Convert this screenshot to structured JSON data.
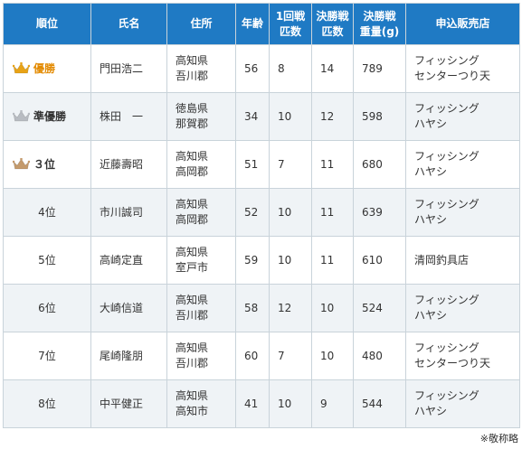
{
  "table": {
    "headers": [
      "順位",
      "氏名",
      "住所",
      "年齢",
      "1回戦\n匹数",
      "決勝戦\n匹数",
      "決勝戦\n重量(g)",
      "申込販売店"
    ],
    "rows": [
      {
        "rank": "優勝",
        "medal": "gold-crown-icon",
        "name": "門田浩二",
        "address": [
          "高知県",
          "吾川郡"
        ],
        "age": "56",
        "round1": "8",
        "final_count": "14",
        "final_weight": "789",
        "shop": [
          "フィッシング",
          "センターつり天"
        ]
      },
      {
        "rank": "準優勝",
        "medal": "silver-crown-icon",
        "name": "株田　一",
        "address": [
          "徳島県",
          "那賀郡"
        ],
        "age": "34",
        "round1": "10",
        "final_count": "12",
        "final_weight": "598",
        "shop": [
          "フィッシング",
          "ハヤシ"
        ]
      },
      {
        "rank": "３位",
        "medal": "bronze-crown-icon",
        "name": "近藤壽昭",
        "address": [
          "高知県",
          "高岡郡"
        ],
        "age": "51",
        "round1": "7",
        "final_count": "11",
        "final_weight": "680",
        "shop": [
          "フィッシング",
          "ハヤシ"
        ]
      },
      {
        "rank": "4位",
        "medal": "",
        "name": "市川誠司",
        "address": [
          "高知県",
          "高岡郡"
        ],
        "age": "52",
        "round1": "10",
        "final_count": "11",
        "final_weight": "639",
        "shop": [
          "フィッシング",
          "ハヤシ"
        ]
      },
      {
        "rank": "5位",
        "medal": "",
        "name": "高崎定直",
        "address": [
          "高知県",
          "室戸市"
        ],
        "age": "59",
        "round1": "10",
        "final_count": "11",
        "final_weight": "610",
        "shop": [
          "清岡釣具店"
        ]
      },
      {
        "rank": "6位",
        "medal": "",
        "name": "大崎信道",
        "address": [
          "高知県",
          "吾川郡"
        ],
        "age": "58",
        "round1": "12",
        "final_count": "10",
        "final_weight": "524",
        "shop": [
          "フィッシング",
          "ハヤシ"
        ]
      },
      {
        "rank": "7位",
        "medal": "",
        "name": "尾崎隆朋",
        "address": [
          "高知県",
          "吾川郡"
        ],
        "age": "60",
        "round1": "7",
        "final_count": "10",
        "final_weight": "480",
        "shop": [
          "フィッシング",
          "センターつり天"
        ]
      },
      {
        "rank": "8位",
        "medal": "",
        "name": "中平健正",
        "address": [
          "高知県",
          "高知市"
        ],
        "age": "41",
        "round1": "10",
        "final_count": "9",
        "final_weight": "544",
        "shop": [
          "フィッシング",
          "ハヤシ"
        ]
      }
    ]
  },
  "note": "※敬称略",
  "colors": {
    "header_bg": "#1f7ac4",
    "alt_row_bg": "#eff3f6",
    "border": "#c9d3da",
    "gold": "#e8a317",
    "silver": "#b8bcc2",
    "bronze": "#c49a6c",
    "winner_text": "#e38a00"
  }
}
